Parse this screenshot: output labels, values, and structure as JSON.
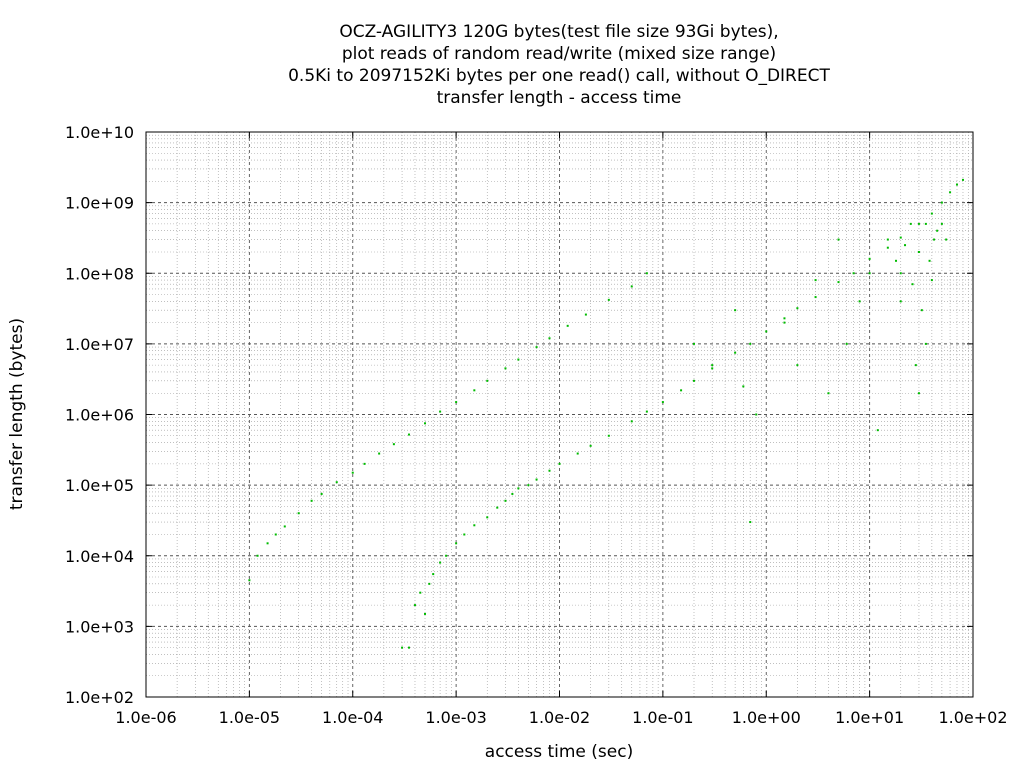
{
  "chart_data": {
    "type": "scatter",
    "title": [
      "OCZ-AGILITY3 120G bytes(test file size 93Gi bytes),",
      "plot reads of random read/write (mixed size range)",
      "0.5Ki to 2097152Ki bytes per one read() call, without O_DIRECT",
      "transfer length - access time"
    ],
    "xlabel": "access time (sec)",
    "ylabel": "transfer length (bytes)",
    "xscale": "log",
    "yscale": "log",
    "xlim": [
      1e-06,
      100
    ],
    "ylim": [
      100,
      10000000000.0
    ],
    "xticks": [
      "1.0e-06",
      "1.0e-05",
      "1.0e-04",
      "1.0e-03",
      "1.0e-02",
      "1.0e-01",
      "1.0e+00",
      "1.0e+01",
      "1.0e+02"
    ],
    "yticks": [
      "1.0e+02",
      "1.0e+03",
      "1.0e+04",
      "1.0e+05",
      "1.0e+06",
      "1.0e+07",
      "1.0e+08",
      "1.0e+09",
      "1.0e+10"
    ],
    "grid": true,
    "point_color": "#00bb00",
    "series": [
      {
        "points": [
          [
            1e-05,
            4500.0
          ],
          [
            1.2e-05,
            10000.0
          ],
          [
            1.5e-05,
            15000.0
          ],
          [
            1.8e-05,
            20000.0
          ],
          [
            2.2e-05,
            26000.0
          ],
          [
            3e-05,
            40000.0
          ],
          [
            4e-05,
            60000.0
          ],
          [
            5e-05,
            75000.0
          ],
          [
            7e-05,
            110000.0
          ],
          [
            0.0001,
            150000.0
          ],
          [
            0.00013,
            200000.0
          ],
          [
            0.00018,
            280000.0
          ],
          [
            0.00025,
            380000.0
          ],
          [
            0.00035,
            520000.0
          ],
          [
            0.0005,
            750000.0
          ],
          [
            0.0007,
            1100000.0
          ],
          [
            0.001,
            1500000.0
          ],
          [
            0.0015,
            2200000.0
          ],
          [
            0.002,
            3000000.0
          ],
          [
            0.003,
            4500000.0
          ],
          [
            0.004,
            6000000.0
          ],
          [
            0.006,
            9000000.0
          ],
          [
            0.008,
            12000000.0
          ],
          [
            0.012,
            18000000.0
          ],
          [
            0.018,
            26000000.0
          ],
          [
            0.03,
            42000000.0
          ],
          [
            0.05,
            65000000.0
          ],
          [
            0.07,
            100000000.0
          ]
        ]
      },
      {
        "points": [
          [
            0.0003,
            500.0
          ],
          [
            0.00035,
            500.0
          ],
          [
            0.0004,
            2000.0
          ],
          [
            0.00045,
            3000.0
          ],
          [
            0.0005,
            1500.0
          ],
          [
            0.00055,
            4000.0
          ],
          [
            0.0006,
            5500.0
          ],
          [
            0.0007,
            8000.0
          ],
          [
            0.0008,
            10000.0
          ],
          [
            0.001,
            15000.0
          ],
          [
            0.0012,
            20000.0
          ],
          [
            0.0015,
            27000.0
          ],
          [
            0.002,
            35000.0
          ],
          [
            0.0025,
            48000.0
          ],
          [
            0.003,
            60000.0
          ],
          [
            0.0035,
            75000.0
          ],
          [
            0.004,
            90000.0
          ],
          [
            0.005,
            100000.0
          ],
          [
            0.006,
            120000.0
          ],
          [
            0.008,
            160000.0
          ],
          [
            0.01,
            200000.0
          ],
          [
            0.015,
            280000.0
          ],
          [
            0.02,
            360000.0
          ],
          [
            0.03,
            500000.0
          ],
          [
            0.05,
            800000.0
          ],
          [
            0.07,
            1100000.0
          ],
          [
            0.1,
            1500000.0
          ],
          [
            0.15,
            2200000.0
          ],
          [
            0.2,
            3000000.0
          ],
          [
            0.3,
            4500000.0
          ],
          [
            0.5,
            7500000.0
          ],
          [
            0.7,
            10000000.0
          ],
          [
            1.0,
            15000000.0
          ],
          [
            1.5,
            23000000.0
          ],
          [
            2.0,
            32000000.0
          ],
          [
            3.0,
            46000000.0
          ],
          [
            5.0,
            75000000.0
          ],
          [
            7.0,
            100000000.0
          ],
          [
            10.0,
            160000000.0
          ],
          [
            15.0,
            230000000.0
          ],
          [
            20.0,
            320000000.0
          ],
          [
            30.0,
            500000000.0
          ],
          [
            40.0,
            700000000.0
          ],
          [
            50.0,
            1000000000.0
          ],
          [
            60.0,
            1400000000.0
          ],
          [
            70.0,
            1800000000.0
          ],
          [
            80.0,
            2100000000.0
          ]
        ]
      },
      {
        "points": [
          [
            0.2,
            10000000.0
          ],
          [
            0.3,
            5000000.0
          ],
          [
            0.5,
            30000000.0
          ],
          [
            0.6,
            2500000.0
          ],
          [
            0.8,
            1000000.0
          ],
          [
            0.7,
            30000.0
          ],
          [
            1.5,
            20000000.0
          ],
          [
            2.0,
            5000000.0
          ],
          [
            3.0,
            80000000.0
          ],
          [
            4.0,
            2000000.0
          ],
          [
            5.0,
            300000000.0
          ],
          [
            6.0,
            10000000.0
          ],
          [
            8.0,
            40000000.0
          ],
          [
            10.0,
            100000000.0
          ],
          [
            12.0,
            600000.0
          ],
          [
            15.0,
            300000000.0
          ],
          [
            20.0,
            100000000.0
          ],
          [
            25.0,
            500000000.0
          ],
          [
            30.0,
            200000000.0
          ],
          [
            35.0,
            500000000.0
          ],
          [
            40.0,
            80000000.0
          ],
          [
            45.0,
            400000000.0
          ],
          [
            50.0,
            500000000.0
          ],
          [
            55.0,
            300000000.0
          ],
          [
            30.0,
            2000000.0
          ],
          [
            28.0,
            5000000.0
          ],
          [
            35.0,
            10000000.0
          ],
          [
            20.0,
            40000000.0
          ],
          [
            18.0,
            150000000.0
          ],
          [
            22.0,
            250000000.0
          ],
          [
            38.0,
            150000000.0
          ],
          [
            42.0,
            300000000.0
          ],
          [
            26.0,
            70000000.0
          ],
          [
            32.0,
            30000000.0
          ]
        ]
      }
    ]
  }
}
